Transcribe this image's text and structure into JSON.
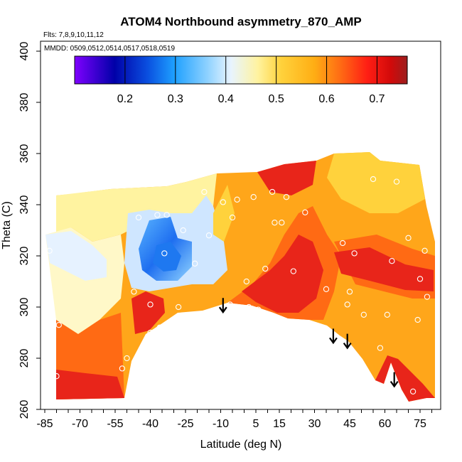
{
  "chart_data": {
    "type": "heatmap",
    "title": "ATOM4 Northbound asymmetry_870_AMP",
    "flights_label": "Flts: 7,8,9,10,11,12",
    "dates_label": "MMDD: 0509,0512,0514,0517,0518,0519",
    "xlabel": "Latitude (deg N)",
    "ylabel": "Theta (C)",
    "xlim": [
      -87,
      82
    ],
    "ylim": [
      260,
      405
    ],
    "x_ticks": [
      -85,
      -70,
      -55,
      -40,
      -25,
      -10,
      5,
      15,
      30,
      45,
      60,
      75
    ],
    "y_ticks": [
      260,
      280,
      300,
      320,
      340,
      360,
      380,
      400
    ],
    "colorbar": {
      "range": [
        0.1,
        0.76
      ],
      "ticks": [
        0.2,
        0.3,
        0.4,
        0.5,
        0.6,
        0.7
      ],
      "palette": [
        "#7f00ff",
        "#0000a8",
        "#0a50e0",
        "#1ea0ff",
        "#8fd2ff",
        "#e8f4ff",
        "#fff3a0",
        "#ffd23c",
        "#ffae14",
        "#ff6a14",
        "#ff1e14",
        "#d20a0a",
        "#9c1e1e"
      ]
    },
    "colors": {
      "high": "#e8251a",
      "mid": "#ffa61a",
      "neutral": "#fff3a0",
      "low": "#1e78f0"
    },
    "sample_points": [
      {
        "lat": -83,
        "theta": 322
      },
      {
        "lat": -80,
        "theta": 273
      },
      {
        "lat": -79,
        "theta": 293
      },
      {
        "lat": -52,
        "theta": 276
      },
      {
        "lat": -50,
        "theta": 280
      },
      {
        "lat": -47,
        "theta": 306
      },
      {
        "lat": -45,
        "theta": 335
      },
      {
        "lat": -40,
        "theta": 301
      },
      {
        "lat": -40,
        "theta": 290
      },
      {
        "lat": -37,
        "theta": 336
      },
      {
        "lat": -36,
        "theta": 292
      },
      {
        "lat": -34,
        "theta": 321
      },
      {
        "lat": -33,
        "theta": 336
      },
      {
        "lat": -28,
        "theta": 300
      },
      {
        "lat": -27,
        "theta": 296
      },
      {
        "lat": -26,
        "theta": 330
      },
      {
        "lat": -22,
        "theta": 297
      },
      {
        "lat": -21,
        "theta": 317
      },
      {
        "lat": -17,
        "theta": 345
      },
      {
        "lat": -15,
        "theta": 328
      },
      {
        "lat": -9,
        "theta": 341
      },
      {
        "lat": -6,
        "theta": 301
      },
      {
        "lat": -5,
        "theta": 335
      },
      {
        "lat": -3,
        "theta": 342
      },
      {
        "lat": 1,
        "theta": 310
      },
      {
        "lat": 2,
        "theta": 300
      },
      {
        "lat": 4,
        "theta": 343
      },
      {
        "lat": 6,
        "theta": 299
      },
      {
        "lat": 8,
        "theta": 297
      },
      {
        "lat": 9,
        "theta": 315
      },
      {
        "lat": 12,
        "theta": 345
      },
      {
        "lat": 13,
        "theta": 333
      },
      {
        "lat": 16,
        "theta": 295
      },
      {
        "lat": 16,
        "theta": 333
      },
      {
        "lat": 18,
        "theta": 343
      },
      {
        "lat": 21,
        "theta": 294
      },
      {
        "lat": 21,
        "theta": 314
      },
      {
        "lat": 26,
        "theta": 337
      },
      {
        "lat": 35,
        "theta": 307
      },
      {
        "lat": 42,
        "theta": 325
      },
      {
        "lat": 44,
        "theta": 301
      },
      {
        "lat": 45,
        "theta": 306
      },
      {
        "lat": 47,
        "theta": 321
      },
      {
        "lat": 51,
        "theta": 297
      },
      {
        "lat": 55,
        "theta": 350
      },
      {
        "lat": 58,
        "theta": 284
      },
      {
        "lat": 61,
        "theta": 297
      },
      {
        "lat": 63,
        "theta": 318
      },
      {
        "lat": 65,
        "theta": 349
      },
      {
        "lat": 70,
        "theta": 327
      },
      {
        "lat": 72,
        "theta": 267
      },
      {
        "lat": 74,
        "theta": 295
      },
      {
        "lat": 75,
        "theta": 311
      },
      {
        "lat": 77,
        "theta": 322
      },
      {
        "lat": 78,
        "theta": 304
      }
    ],
    "arrows": [
      {
        "lat": -9,
        "theta": 298
      },
      {
        "lat": 38,
        "theta": 286
      },
      {
        "lat": 44,
        "theta": 284
      },
      {
        "lat": 64,
        "theta": 269
      }
    ]
  }
}
